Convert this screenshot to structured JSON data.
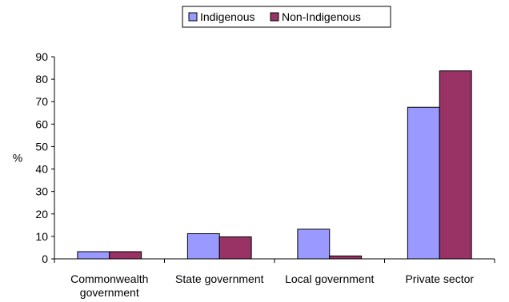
{
  "chart_data": {
    "type": "bar",
    "title": "",
    "xlabel": "",
    "ylabel": "%",
    "ylim": [
      0,
      90
    ],
    "yticks": [
      0,
      10,
      20,
      30,
      40,
      50,
      60,
      70,
      80,
      90
    ],
    "grid": false,
    "legend_position": "top",
    "categories": [
      "Commonwealth government",
      "State government",
      "Local government",
      "Private sector"
    ],
    "category_lines": [
      [
        "Commonwealth",
        "government"
      ],
      [
        "State government"
      ],
      [
        "Local government"
      ],
      [
        "Private sector"
      ]
    ],
    "series": [
      {
        "name": "Indigenous",
        "values": [
          3.2,
          11.2,
          13.2,
          67.5
        ],
        "color": "#9999ff"
      },
      {
        "name": "Non-Indigenous",
        "values": [
          3.2,
          9.8,
          1.3,
          83.7
        ],
        "color": "#993366"
      }
    ]
  }
}
